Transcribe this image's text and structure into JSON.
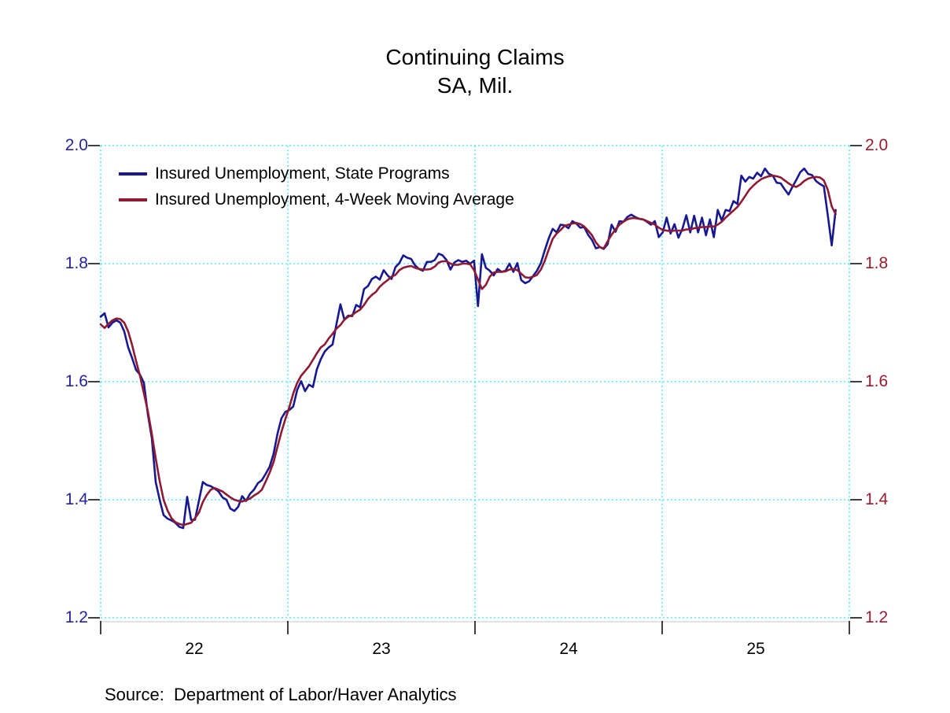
{
  "title": {
    "line1": "Continuing Claims",
    "line2": "SA, Mil."
  },
  "source_text": "Source:  Department of Labor/Haver Analytics",
  "colors": {
    "state_programs_line": "#181890",
    "moving_average_line": "#8f1a33",
    "left_axis_labels": "#24249c",
    "right_axis_labels": "#981c30",
    "gridline": "#00dff0",
    "tick": "#000000",
    "baseline": "#c9c9c9"
  },
  "legend": {
    "items": [
      {
        "label": "Insured Unemployment, State Programs",
        "color": "#181890"
      },
      {
        "label": "Insured Unemployment, 4-Week Moving Average",
        "color": "#8f1a33"
      }
    ]
  },
  "chart_data": {
    "type": "line",
    "title": "Continuing Claims",
    "subtitle": "SA, Mil.",
    "ylabel": "",
    "xlabel": "",
    "ylim": [
      1.2,
      2.0
    ],
    "xlim": [
      22,
      26
    ],
    "y_ticks": [
      2.0,
      1.8,
      1.6,
      1.4,
      1.2
    ],
    "y_tick_labels": [
      "2.0",
      "1.8",
      "1.6",
      "1.4",
      "1.2"
    ],
    "x_grid_ticks": [
      22,
      23,
      24,
      25,
      26
    ],
    "x_tick_labels": [
      "22",
      "23",
      "24",
      "25"
    ],
    "x_label_positions": [
      22.5,
      23.5,
      24.5,
      25.5
    ],
    "grid": "dotted cyan, both axes; dual y-axis with identical scales",
    "legend_position": "top-left inside plot",
    "series": [
      {
        "name": "Insured Unemployment, State Programs",
        "color": "#181890",
        "x_start": 22.0,
        "x_step": 0.021,
        "values": [
          1.71,
          1.716,
          1.692,
          1.7,
          1.704,
          1.7,
          1.685,
          1.658,
          1.64,
          1.62,
          1.612,
          1.598,
          1.545,
          1.505,
          1.43,
          1.4,
          1.374,
          1.368,
          1.365,
          1.361,
          1.354,
          1.352,
          1.405,
          1.366,
          1.366,
          1.398,
          1.43,
          1.425,
          1.423,
          1.419,
          1.414,
          1.404,
          1.4,
          1.385,
          1.381,
          1.388,
          1.406,
          1.398,
          1.41,
          1.417,
          1.428,
          1.433,
          1.444,
          1.456,
          1.478,
          1.512,
          1.538,
          1.549,
          1.552,
          1.558,
          1.586,
          1.601,
          1.584,
          1.595,
          1.591,
          1.621,
          1.638,
          1.651,
          1.658,
          1.663,
          1.698,
          1.731,
          1.705,
          1.712,
          1.711,
          1.73,
          1.726,
          1.757,
          1.762,
          1.774,
          1.778,
          1.773,
          1.789,
          1.78,
          1.774,
          1.794,
          1.801,
          1.814,
          1.81,
          1.808,
          1.797,
          1.791,
          1.788,
          1.803,
          1.803,
          1.806,
          1.817,
          1.814,
          1.806,
          1.79,
          1.802,
          1.806,
          1.803,
          1.805,
          1.8,
          1.805,
          1.728,
          1.816,
          1.793,
          1.788,
          1.78,
          1.791,
          1.786,
          1.788,
          1.8,
          1.786,
          1.801,
          1.772,
          1.767,
          1.77,
          1.779,
          1.788,
          1.801,
          1.823,
          1.843,
          1.859,
          1.853,
          1.866,
          1.865,
          1.86,
          1.872,
          1.868,
          1.861,
          1.862,
          1.849,
          1.84,
          1.826,
          1.828,
          1.825,
          1.833,
          1.866,
          1.854,
          1.872,
          1.871,
          1.879,
          1.883,
          1.879,
          1.876,
          1.875,
          1.871,
          1.866,
          1.872,
          1.845,
          1.853,
          1.878,
          1.851,
          1.867,
          1.844,
          1.859,
          1.882,
          1.853,
          1.881,
          1.853,
          1.878,
          1.848,
          1.875,
          1.845,
          1.891,
          1.873,
          1.891,
          1.889,
          1.906,
          1.901,
          1.949,
          1.939,
          1.947,
          1.944,
          1.954,
          1.948,
          1.961,
          1.952,
          1.949,
          1.937,
          1.936,
          1.926,
          1.917,
          1.93,
          1.942,
          1.955,
          1.961,
          1.952,
          1.95,
          1.94,
          1.935,
          1.931,
          1.882,
          1.831,
          1.891
        ]
      },
      {
        "name": "Insured Unemployment, 4-Week Moving Average",
        "color": "#8f1a33",
        "x_start": 22.0,
        "x_step": 0.021,
        "values": [
          1.697,
          1.691,
          1.698,
          1.704,
          1.707,
          1.706,
          1.7,
          1.685,
          1.662,
          1.635,
          1.61,
          1.58,
          1.55,
          1.512,
          1.47,
          1.432,
          1.4,
          1.382,
          1.369,
          1.362,
          1.359,
          1.357,
          1.359,
          1.361,
          1.369,
          1.378,
          1.396,
          1.408,
          1.417,
          1.42,
          1.417,
          1.414,
          1.409,
          1.404,
          1.4,
          1.398,
          1.397,
          1.399,
          1.402,
          1.407,
          1.411,
          1.417,
          1.431,
          1.446,
          1.464,
          1.49,
          1.515,
          1.537,
          1.557,
          1.58,
          1.598,
          1.61,
          1.618,
          1.626,
          1.637,
          1.648,
          1.658,
          1.663,
          1.673,
          1.681,
          1.69,
          1.696,
          1.705,
          1.71,
          1.713,
          1.718,
          1.722,
          1.73,
          1.74,
          1.747,
          1.752,
          1.761,
          1.767,
          1.772,
          1.778,
          1.781,
          1.789,
          1.793,
          1.795,
          1.796,
          1.793,
          1.791,
          1.79,
          1.79,
          1.791,
          1.795,
          1.802,
          1.804,
          1.804,
          1.8,
          1.798,
          1.798,
          1.8,
          1.8,
          1.799,
          1.789,
          1.773,
          1.757,
          1.764,
          1.778,
          1.785,
          1.786,
          1.786,
          1.787,
          1.79,
          1.791,
          1.789,
          1.783,
          1.777,
          1.776,
          1.778,
          1.781,
          1.79,
          1.805,
          1.824,
          1.842,
          1.851,
          1.857,
          1.864,
          1.866,
          1.868,
          1.869,
          1.867,
          1.863,
          1.856,
          1.848,
          1.836,
          1.828,
          1.826,
          1.838,
          1.849,
          1.858,
          1.866,
          1.871,
          1.875,
          1.877,
          1.877,
          1.876,
          1.875,
          1.872,
          1.869,
          1.866,
          1.861,
          1.857,
          1.856,
          1.855,
          1.856,
          1.856,
          1.856,
          1.858,
          1.858,
          1.86,
          1.861,
          1.862,
          1.862,
          1.863,
          1.863,
          1.866,
          1.871,
          1.878,
          1.884,
          1.89,
          1.896,
          1.905,
          1.915,
          1.925,
          1.932,
          1.938,
          1.943,
          1.946,
          1.948,
          1.949,
          1.948,
          1.946,
          1.941,
          1.936,
          1.932,
          1.93,
          1.934,
          1.94,
          1.944,
          1.946,
          1.947,
          1.946,
          1.941,
          1.925,
          1.897,
          1.884
        ]
      }
    ]
  }
}
